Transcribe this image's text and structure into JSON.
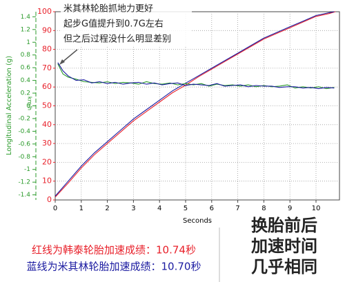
{
  "chart_data": {
    "type": "line",
    "annotation": [
      "米其林轮胎抓地力更好",
      "起步G值提升到0.7G左右",
      "但之后过程没什么明显差别"
    ],
    "notes": [
      "红线为韩泰轮胎加速成绩：10.74秒",
      "蓝线为米其林轮胎加速成绩：10.70秒"
    ],
    "headline": [
      "换胎前后",
      "加速时间",
      "几乎相同"
    ],
    "xlabel": "Seconds",
    "ylabel": "km/h",
    "y2label": "Longitudinal Acceleration (g)",
    "xlim": [
      0,
      10.9
    ],
    "xticks": [
      0,
      1,
      2,
      3,
      4,
      5,
      6,
      7,
      8,
      9,
      10
    ],
    "ylim": [
      0,
      100
    ],
    "yticks": [
      0,
      10,
      20,
      30,
      40,
      50,
      60,
      70,
      80,
      90,
      100
    ],
    "y2lim": [
      -1.48,
      1.48
    ],
    "y2ticks": [
      1.4,
      1.2,
      1,
      0.8,
      0.6,
      0.4,
      0.2,
      0,
      -0.2,
      -0.4,
      -0.6,
      -0.8,
      -1,
      -1.2,
      -1.4
    ],
    "grid": true,
    "series": [
      {
        "color": "#e8202a",
        "x": [
          0,
          0.5,
          1,
          1.5,
          2,
          2.5,
          3,
          3.5,
          4,
          4.5,
          5,
          5.5,
          6,
          6.5,
          7,
          7.5,
          8,
          8.5,
          9,
          9.5,
          10,
          10.5,
          10.74
        ],
        "values": [
          1.5,
          9,
          17,
          24,
          30,
          36,
          42,
          47,
          52,
          57,
          61,
          65.5,
          69.5,
          73.5,
          77.5,
          81.5,
          85.5,
          88.5,
          91.5,
          94.5,
          97.5,
          99,
          100
        ]
      },
      {
        "color": "#1a1aa0",
        "x": [
          0,
          0.5,
          1,
          1.5,
          2,
          2.5,
          3,
          3.5,
          4,
          4.5,
          5,
          5.5,
          6,
          6.5,
          7,
          7.5,
          8,
          8.5,
          9,
          9.5,
          10,
          10.5,
          10.7
        ],
        "values": [
          2,
          10,
          18,
          25,
          31,
          37,
          43,
          48,
          53,
          58,
          62,
          66,
          70,
          74,
          78,
          82,
          86,
          89,
          92,
          95,
          98,
          99.5,
          100
        ]
      },
      {
        "color": "#2a9a2a",
        "axis": "y2",
        "x": [
          0.1,
          0.3,
          0.5,
          0.8,
          1.1,
          1.4,
          1.7,
          2,
          2.3,
          2.6,
          2.9,
          3.2,
          3.5,
          3.8,
          4.1,
          4.4,
          4.7,
          5,
          5.3,
          5.6,
          5.9,
          6.2,
          6.5,
          6.8,
          7.1,
          7.4,
          7.7,
          8,
          8.3,
          8.6,
          8.9,
          9.2,
          9.5,
          9.8,
          10.1,
          10.4,
          10.7
        ],
        "values": [
          0.66,
          0.5,
          0.45,
          0.42,
          0.38,
          0.37,
          0.36,
          0.38,
          0.35,
          0.37,
          0.36,
          0.34,
          0.38,
          0.35,
          0.34,
          0.36,
          0.33,
          0.35,
          0.33,
          0.35,
          0.31,
          0.34,
          0.32,
          0.33,
          0.31,
          0.33,
          0.3,
          0.32,
          0.3,
          0.31,
          0.33,
          0.28,
          0.3,
          0.28,
          0.3,
          0.27,
          0.29
        ]
      },
      {
        "color": "#1a1aa0",
        "axis": "y2",
        "x": [
          0.1,
          0.3,
          0.5,
          0.8,
          1.1,
          1.4,
          1.7,
          2,
          2.3,
          2.6,
          2.9,
          3.2,
          3.5,
          3.8,
          4.1,
          4.4,
          4.7,
          5,
          5.3,
          5.6,
          5.9,
          6.2,
          6.5,
          6.8,
          7.1,
          7.4,
          7.7,
          8,
          8.3,
          8.6,
          8.9,
          9.2,
          9.5,
          9.8,
          10.1,
          10.4,
          10.7
        ],
        "values": [
          0.68,
          0.55,
          0.47,
          0.4,
          0.41,
          0.36,
          0.38,
          0.35,
          0.37,
          0.34,
          0.36,
          0.37,
          0.34,
          0.36,
          0.33,
          0.35,
          0.36,
          0.32,
          0.34,
          0.33,
          0.32,
          0.35,
          0.31,
          0.32,
          0.33,
          0.3,
          0.32,
          0.31,
          0.31,
          0.29,
          0.3,
          0.3,
          0.28,
          0.29,
          0.27,
          0.29,
          0.28
        ]
      }
    ]
  }
}
